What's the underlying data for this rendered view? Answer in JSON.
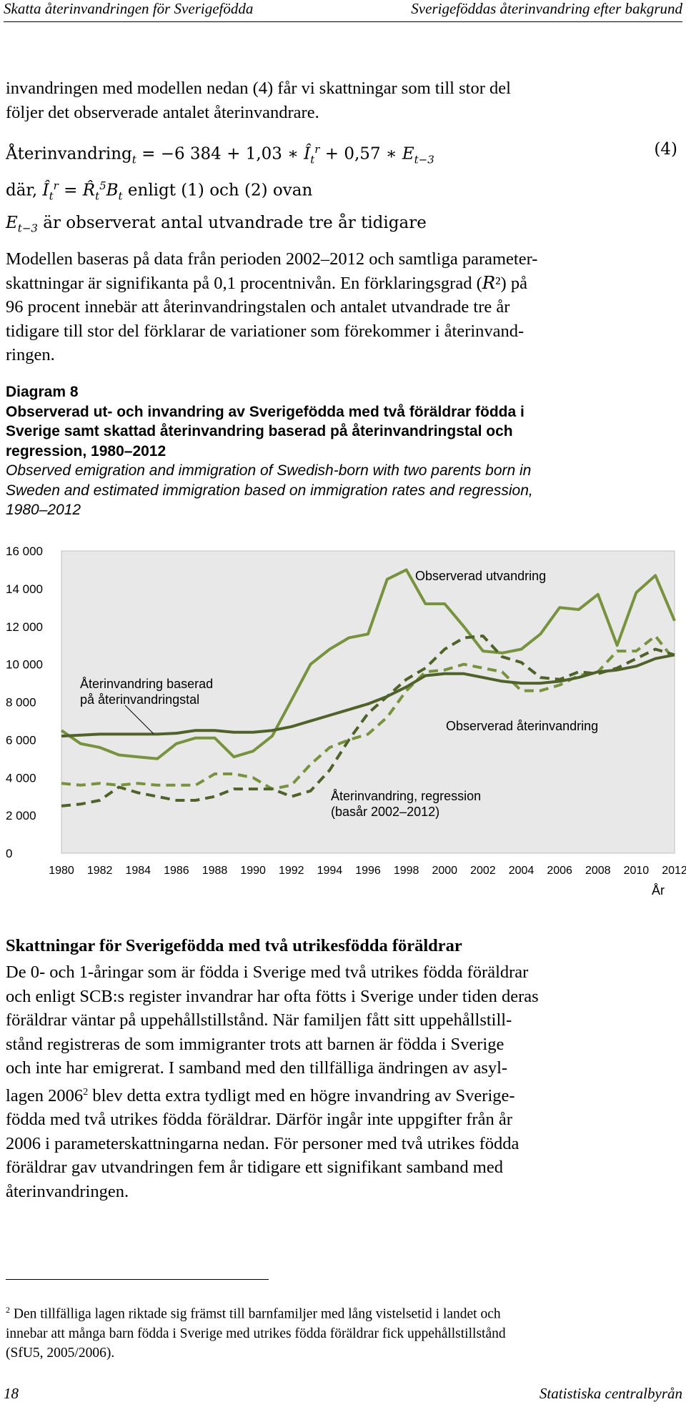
{
  "header": {
    "left": "Skatta återinvandringen för Sverigefödda",
    "right": "Sverigeföddas återinvandring efter bakgrund"
  },
  "intro": {
    "line1": "invandringen med modellen nedan (4) får vi skattningar som till stor del",
    "line2": "följer det observerade antalet återinvandrare."
  },
  "equation": {
    "lhs": "Återinvandring",
    "lhs_sub": "t",
    "rhs": " = −6 384 + 1,03 ∗ ",
    "var1": "Î",
    "var1_sub": "t",
    "var1_sup": "r",
    "rhs2": " + 0,57 ∗ ",
    "var2": "E",
    "var2_sub": "t−3",
    "number": "(4)"
  },
  "where": {
    "prefix": "där, ",
    "var": "Î",
    "var_sub": "t",
    "var_sup": "r",
    "eq": " = ",
    "r": "R̂",
    "r_sub": "t",
    "r_sup": "5",
    "b": "B",
    "b_sub": "t",
    "text": " enligt (1) och (2) ovan"
  },
  "where2": {
    "var": "E",
    "var_sub": "t−3",
    "text": " är observerat antal utvandrade tre år tidigare"
  },
  "paragraph1": [
    "Modellen baseras på data från perioden 2002–2012 och samtliga parameter-",
    "skattningar är signifikanta på 0,1 procentnivån. En förklaringsgrad (𝑅²) på",
    "96 procent innebär att återinvandringstalen och antalet utvandrade tre år",
    "tidigare till stor del förklarar de variationer som förekommer i återinvand-",
    "ringen."
  ],
  "figure": {
    "label": "Diagram 8",
    "title": [
      "Observerad ut- och invandring av Sverigefödda med två föräldrar födda i",
      "Sverige samt skattad återinvandring baserad på återinvandringstal och",
      "regression, 1980–2012"
    ],
    "title_en": [
      "Observed emigration and immigration of Swedish-born with two parents born in",
      "Sweden and estimated immigration based on immigration rates and regression,",
      "1980–2012"
    ]
  },
  "chart_data": {
    "type": "line",
    "xlabel": "År",
    "ylabel": "",
    "ylim": [
      0,
      16000
    ],
    "grid": false,
    "x_ticks": [
      "1980",
      "1982",
      "1984",
      "1986",
      "1988",
      "1990",
      "1992",
      "1994",
      "1996",
      "1998",
      "2000",
      "2002",
      "2004",
      "2006",
      "2008",
      "2010",
      "2012"
    ],
    "y_ticks": [
      "0",
      "2 000",
      "4 000",
      "6 000",
      "8 000",
      "10 000",
      "12 000",
      "14 000",
      "16 000"
    ],
    "x": [
      1980,
      1981,
      1982,
      1983,
      1984,
      1985,
      1986,
      1987,
      1988,
      1989,
      1990,
      1991,
      1992,
      1993,
      1994,
      1995,
      1996,
      1997,
      1998,
      1999,
      2000,
      2001,
      2002,
      2003,
      2004,
      2005,
      2006,
      2007,
      2008,
      2009,
      2010,
      2011,
      2012
    ],
    "series": [
      {
        "name": "Observerad utvandring",
        "color": "#77933c",
        "dash": "solid",
        "values": [
          6500,
          5800,
          5600,
          5200,
          5100,
          5000,
          5800,
          6100,
          6100,
          5100,
          5400,
          6200,
          8100,
          10000,
          10800,
          11400,
          11600,
          14500,
          15000,
          13200,
          13200,
          12000,
          10700,
          10600,
          10800,
          11600,
          13000,
          12900,
          13700,
          11000,
          13800,
          14700,
          12300
        ]
      },
      {
        "name": "Observerad återinvandring",
        "color": "#77933c",
        "dash": "dashed",
        "values": [
          3700,
          3600,
          3700,
          3600,
          3700,
          3600,
          3600,
          3600,
          4200,
          4200,
          4000,
          3400,
          3600,
          4700,
          5600,
          6000,
          6300,
          7200,
          8600,
          9600,
          9700,
          10000,
          9800,
          9600,
          8600,
          8600,
          8900,
          9400,
          9600,
          10700,
          10700,
          11500,
          10200
        ]
      },
      {
        "name": "Återinvandring baserad på återinvandringstal",
        "color": "#4f6228",
        "dash": "solid",
        "values": [
          6200,
          6250,
          6300,
          6300,
          6300,
          6300,
          6350,
          6500,
          6500,
          6400,
          6400,
          6500,
          6700,
          7000,
          7300,
          7600,
          7900,
          8300,
          8800,
          9400,
          9500,
          9500,
          9300,
          9100,
          9000,
          9000,
          9100,
          9300,
          9600,
          9700,
          9900,
          10300,
          10500
        ]
      },
      {
        "name": "Återinvandring, regression (basår 2002–2012)",
        "color": "#4f6228",
        "dash": "dashed",
        "values": [
          2500,
          2600,
          2800,
          3500,
          3200,
          3000,
          2800,
          2800,
          3000,
          3400,
          3400,
          3400,
          3000,
          3300,
          4400,
          6000,
          7400,
          8300,
          9200,
          9800,
          10800,
          11400,
          11500,
          10400,
          10100,
          9300,
          9200,
          9600,
          9500,
          9800,
          10300,
          10800,
          10500
        ]
      }
    ],
    "annotations": [
      {
        "text": "Observerad utvandring"
      },
      {
        "text": "Återinvandring baserad"
      },
      {
        "text": "på återinvandringstal"
      },
      {
        "text": "Observerad återinvandring"
      },
      {
        "text": "Återinvandring, regression"
      },
      {
        "text": "(basår 2002–2012)"
      }
    ]
  },
  "section": {
    "heading": "Skattningar för Sverigefödda med två utrikesfödda föräldrar",
    "lines": [
      "De 0- och 1-åringar som är födda i Sverige med två utrikes födda föräldrar",
      "och enligt SCB:s register invandrar har ofta fötts i Sverige under tiden deras",
      "föräldrar väntar på uppehållstillstånd. När familjen fått sitt uppehållstill-",
      "stånd registreras de som immigranter trots att barnen är födda i Sverige",
      "och inte har emigrerat. I samband med den tillfälliga ändringen av asyl-"
    ],
    "line6_a": "lagen 2006",
    "line6_sup": "2",
    "line6_b": " blev detta extra tydligt med en högre invandring av Sverige-",
    "lines_rest": [
      "födda med två utrikes födda föräldrar. Därför ingår inte uppgifter från år",
      "2006 i parameterskattningarna nedan. För personer med två utrikes födda",
      "föräldrar gav utvandringen fem år tidigare ett signifikant samband med",
      "återinvandringen."
    ]
  },
  "footnote": {
    "mark": "2",
    "lines": [
      " Den tillfälliga lagen riktade sig främst till barnfamiljer med lång vistelsetid i landet och",
      "innebar att många barn födda i Sverige med utrikes födda föräldrar fick uppehållstillstånd",
      "(SfU5, 2005/2006)."
    ]
  },
  "footer": {
    "page": "18",
    "org": "Statistiska centralbyrån"
  }
}
